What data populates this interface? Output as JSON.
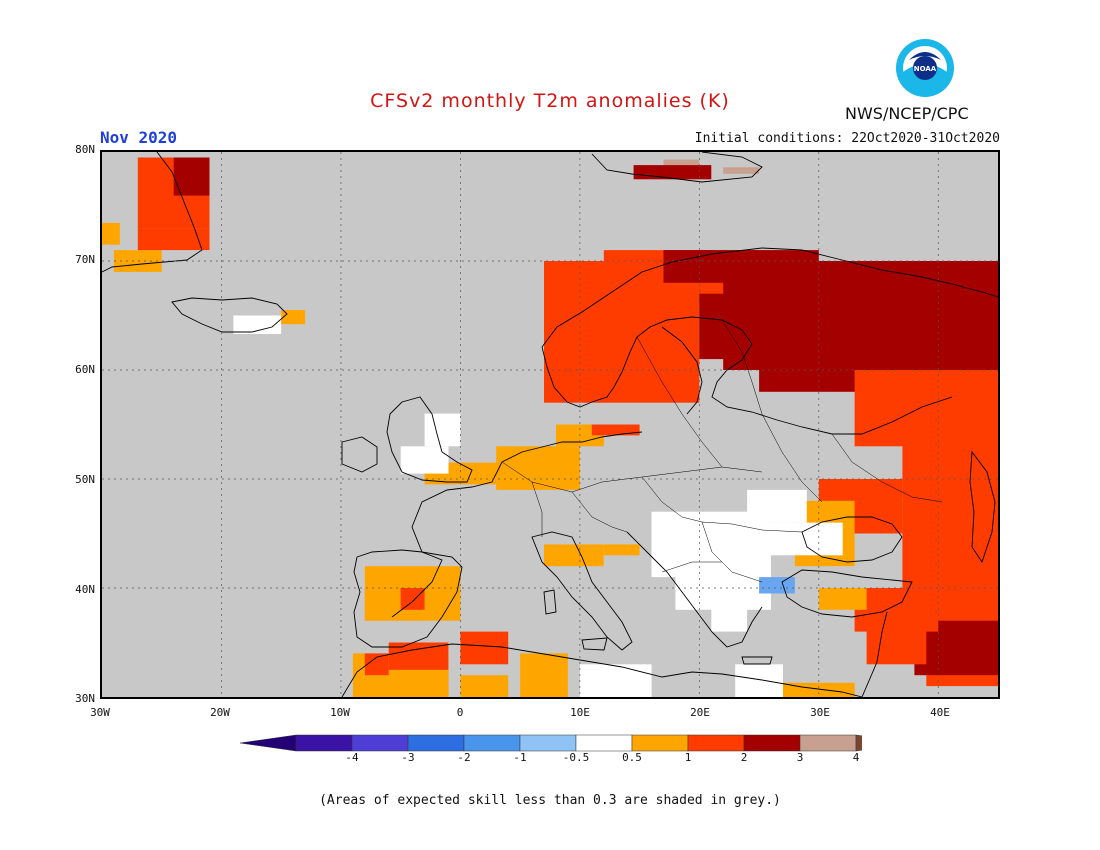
{
  "header": {
    "title": "CFSv2 monthly T2m anomalies (K)",
    "month": "Nov 2020",
    "initial_conditions": "Initial conditions: 22Oct2020-31Oct2020",
    "agency": "NWS/NCEP/CPC",
    "logo_text": "NOAA"
  },
  "map": {
    "lat_labels": [
      "80N",
      "70N",
      "60N",
      "50N",
      "40N",
      "30N"
    ],
    "lon_labels": [
      "30W",
      "20W",
      "10W",
      "0",
      "10E",
      "20E",
      "30E",
      "40E"
    ],
    "lat_range": [
      30,
      80
    ],
    "lon_range": [
      -30,
      45
    ],
    "grid": true,
    "colors": {
      "grey": "#c8c8c8",
      "white": "#ffffff",
      "lt_orange": "#ffa500",
      "orange_red": "#ff3c00",
      "dark_red": "#a50000",
      "light_brown": "#c8a090",
      "light_blue": "#6aa5f0"
    }
  },
  "colorbar": {
    "labels": [
      "-4",
      "-3",
      "-2",
      "-1",
      "-0.5",
      "0.5",
      "1",
      "2",
      "3",
      "4"
    ],
    "colors": [
      "#3b12a6",
      "#4e3ed6",
      "#2d6ee0",
      "#4a95ec",
      "#8fc3f5",
      "#ffffff",
      "#ffa500",
      "#ff3c00",
      "#a50000",
      "#c8a090"
    ],
    "low_end_color": "#230075",
    "high_end_color": "#7a4632"
  },
  "footer": {
    "note": "(Areas of expected skill less than 0.3 are shaded in grey.)"
  }
}
